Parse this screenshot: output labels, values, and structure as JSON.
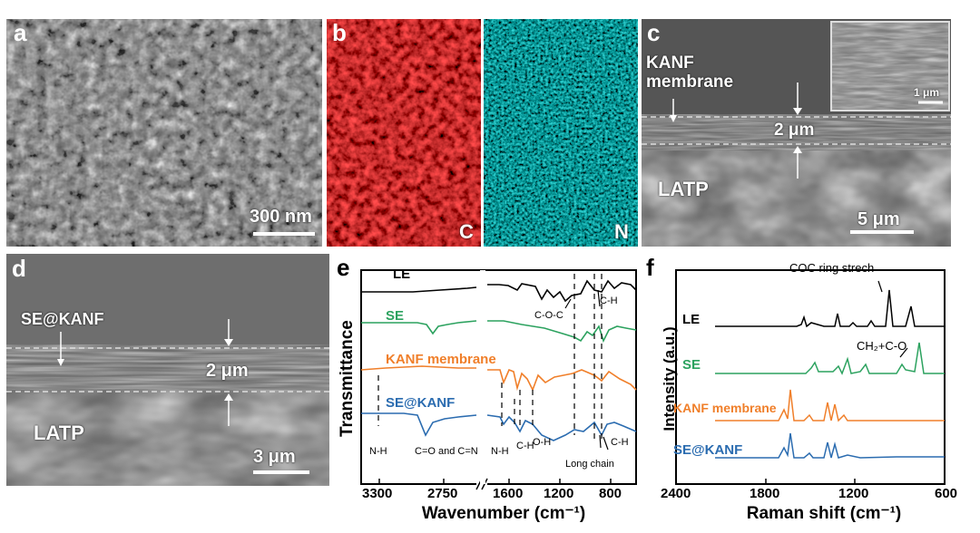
{
  "figure": {
    "panels": {
      "a": {
        "label": "a",
        "scalebar": "300 nm"
      },
      "b": {
        "label": "b",
        "element_left": "C",
        "element_right": "N",
        "color_left": "#c8141a",
        "color_right": "#1aa6a6"
      },
      "c": {
        "label": "c",
        "material_top": "KANF membrane",
        "material_bottom": "LATP",
        "thickness": "2 μm",
        "scalebar": "5 μm",
        "inset_scalebar": "1 μm"
      },
      "d": {
        "label": "d",
        "material_top": "SE@KANF",
        "material_bottom": "LATP",
        "thickness": "2 μm",
        "scalebar": "3 μm"
      },
      "e": {
        "label": "e"
      },
      "f": {
        "label": "f"
      }
    }
  },
  "chart_data": [
    {
      "type": "line",
      "panel": "e",
      "xlabel": "Wavenumber (cm⁻¹)",
      "ylabel": "Transmittance",
      "x_axis": "reversed, broken between 2400 and 1700",
      "xticks": [
        "3300",
        "2750",
        "1600",
        "1200",
        "800"
      ],
      "series": [
        {
          "name": "LE",
          "color": "#000000"
        },
        {
          "name": "SE",
          "color": "#2ca25f"
        },
        {
          "name": "KANF membrane",
          "color": "#f07f2a"
        },
        {
          "name": "SE@KANF",
          "color": "#2b6cb0"
        }
      ],
      "annotations": [
        "N-H",
        "C=O and C=N",
        "N-H",
        "C-H",
        "O-H",
        "C-O-C",
        "C-H",
        "Long chain",
        "C-H"
      ],
      "grid": false
    },
    {
      "type": "line",
      "panel": "f",
      "xlabel": "Raman shift (cm⁻¹)",
      "ylabel": "Intensity (a.u.)",
      "x_axis": "reversed",
      "xlim": [
        2400,
        600
      ],
      "xticks": [
        "2400",
        "1800",
        "1200",
        "600"
      ],
      "series": [
        {
          "name": "LE",
          "color": "#000000"
        },
        {
          "name": "SE",
          "color": "#2ca25f"
        },
        {
          "name": "KANF membrane",
          "color": "#f07f2a"
        },
        {
          "name": "SE@KANF",
          "color": "#2b6cb0"
        }
      ],
      "annotations": [
        "COC ring strech",
        "CH₂+C-O"
      ],
      "grid": false
    }
  ]
}
